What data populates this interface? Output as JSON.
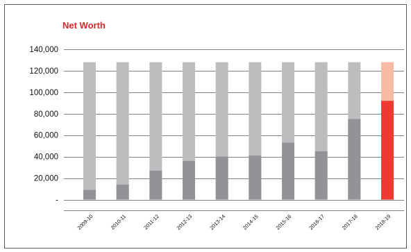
{
  "chart_data": {
    "type": "bar",
    "title": "Net Worth",
    "xlabel": "",
    "ylabel": "",
    "categories": [
      "2009-10",
      "2010-11",
      "2011-12",
      "2012-13",
      "2013-14",
      "2014-15",
      "2015-16",
      "2016-17",
      "2017-18",
      "2018-19"
    ],
    "series": [
      {
        "name": "",
        "values": [
          9000,
          14000,
          27000,
          36000,
          40000,
          41000,
          53000,
          45000,
          75000,
          92000
        ]
      },
      {
        "name": "",
        "values": [
          128000,
          128000,
          128000,
          128000,
          128000,
          128000,
          128000,
          128000,
          128000,
          128000
        ]
      }
    ],
    "ylim": [
      -10000,
      140000
    ],
    "yticks": [
      {
        "value": 140000,
        "label": "140,000"
      },
      {
        "value": 120000,
        "label": "120,000"
      },
      {
        "value": 100000,
        "label": "100,000"
      },
      {
        "value": 80000,
        "label": "80,000"
      },
      {
        "value": 60000,
        "label": "60,000"
      },
      {
        "value": 40000,
        "label": "40,000"
      },
      {
        "value": 20000,
        "label": "20,000"
      },
      {
        "value": 0,
        "label": "-"
      }
    ],
    "grid": true,
    "highlight_index": 9,
    "colors": {
      "value_bar": "#939397",
      "background_bar": "#bdbdbf",
      "highlight_value_bar": "#ee3a33",
      "highlight_background_bar": "#f7bca3",
      "title": "#d7262b",
      "grid": "#555555"
    }
  }
}
